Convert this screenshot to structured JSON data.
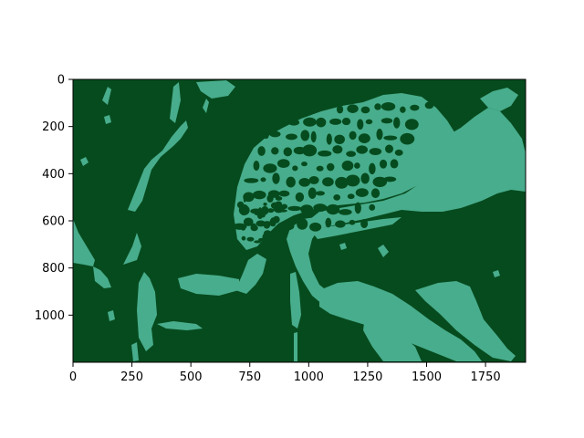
{
  "chart_data": {
    "type": "heatmap",
    "title": "",
    "xlabel": "",
    "ylabel": "",
    "xlim": [
      0,
      1920
    ],
    "ylim": [
      1200,
      0
    ],
    "x_ticks": [
      0,
      250,
      500,
      750,
      1000,
      1250,
      1500,
      1750
    ],
    "y_ticks": [
      0,
      200,
      400,
      600,
      800,
      1000
    ],
    "x_tick_labels": [
      "0",
      "250",
      "500",
      "750",
      "1000",
      "1250",
      "1500",
      "1750"
    ],
    "y_tick_labels": [
      "0",
      "200",
      "400",
      "600",
      "800",
      "1000"
    ],
    "grid": false,
    "legend": "none",
    "colormap": [
      "#064b1e",
      "#48ad8c"
    ],
    "values": [
      0,
      1
    ],
    "image_content": "two-level binarized image of a spotted frog sitting on a leaf, dark green background with light teal-green foreground regions",
    "colors": {
      "background": "#064b1e",
      "foreground": "#48ad8c",
      "axis": "#000000"
    }
  }
}
